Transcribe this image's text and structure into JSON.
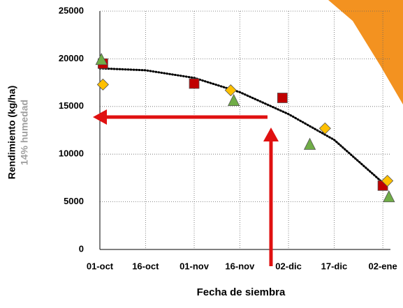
{
  "chart_data": {
    "type": "scatter",
    "y_label": "Rendimiento (kg/ha)",
    "y_sublabel": "14% humedad",
    "x_label": "Fecha de siembra",
    "xlim": [
      0,
      95.5
    ],
    "xticks": [
      {
        "value": 0,
        "label": "01-oct"
      },
      {
        "value": 15,
        "label": "16-oct"
      },
      {
        "value": 31,
        "label": "01-nov"
      },
      {
        "value": 46,
        "label": "16-nov"
      },
      {
        "value": 62,
        "label": "02-dic"
      },
      {
        "value": 77,
        "label": "17-dic"
      },
      {
        "value": 93,
        "label": "02-ene"
      }
    ],
    "ylim": [
      0,
      25000
    ],
    "yticks": [
      0,
      5000,
      10000,
      15000,
      20000,
      25000
    ],
    "grid": true,
    "series": [
      {
        "marker": "square",
        "color": "#c00000",
        "x": [
          1,
          31,
          60,
          93
        ],
        "values": [
          19500,
          17400,
          15900,
          6700
        ]
      },
      {
        "marker": "diamond",
        "color": "#ffc000",
        "x": [
          1,
          43,
          74,
          94.5
        ],
        "values": [
          17300,
          16700,
          12700,
          7200
        ]
      },
      {
        "marker": "triangle",
        "color": "#70ad47",
        "x": [
          0.5,
          44,
          69,
          95
        ],
        "values": [
          19900,
          15600,
          11000,
          5500
        ]
      }
    ],
    "trendline": {
      "x": [
        0,
        15,
        31,
        46,
        62,
        77,
        93
      ],
      "values": [
        19000,
        18800,
        18000,
        16500,
        14200,
        11500,
        7000
      ],
      "color": "#000000"
    }
  }
}
